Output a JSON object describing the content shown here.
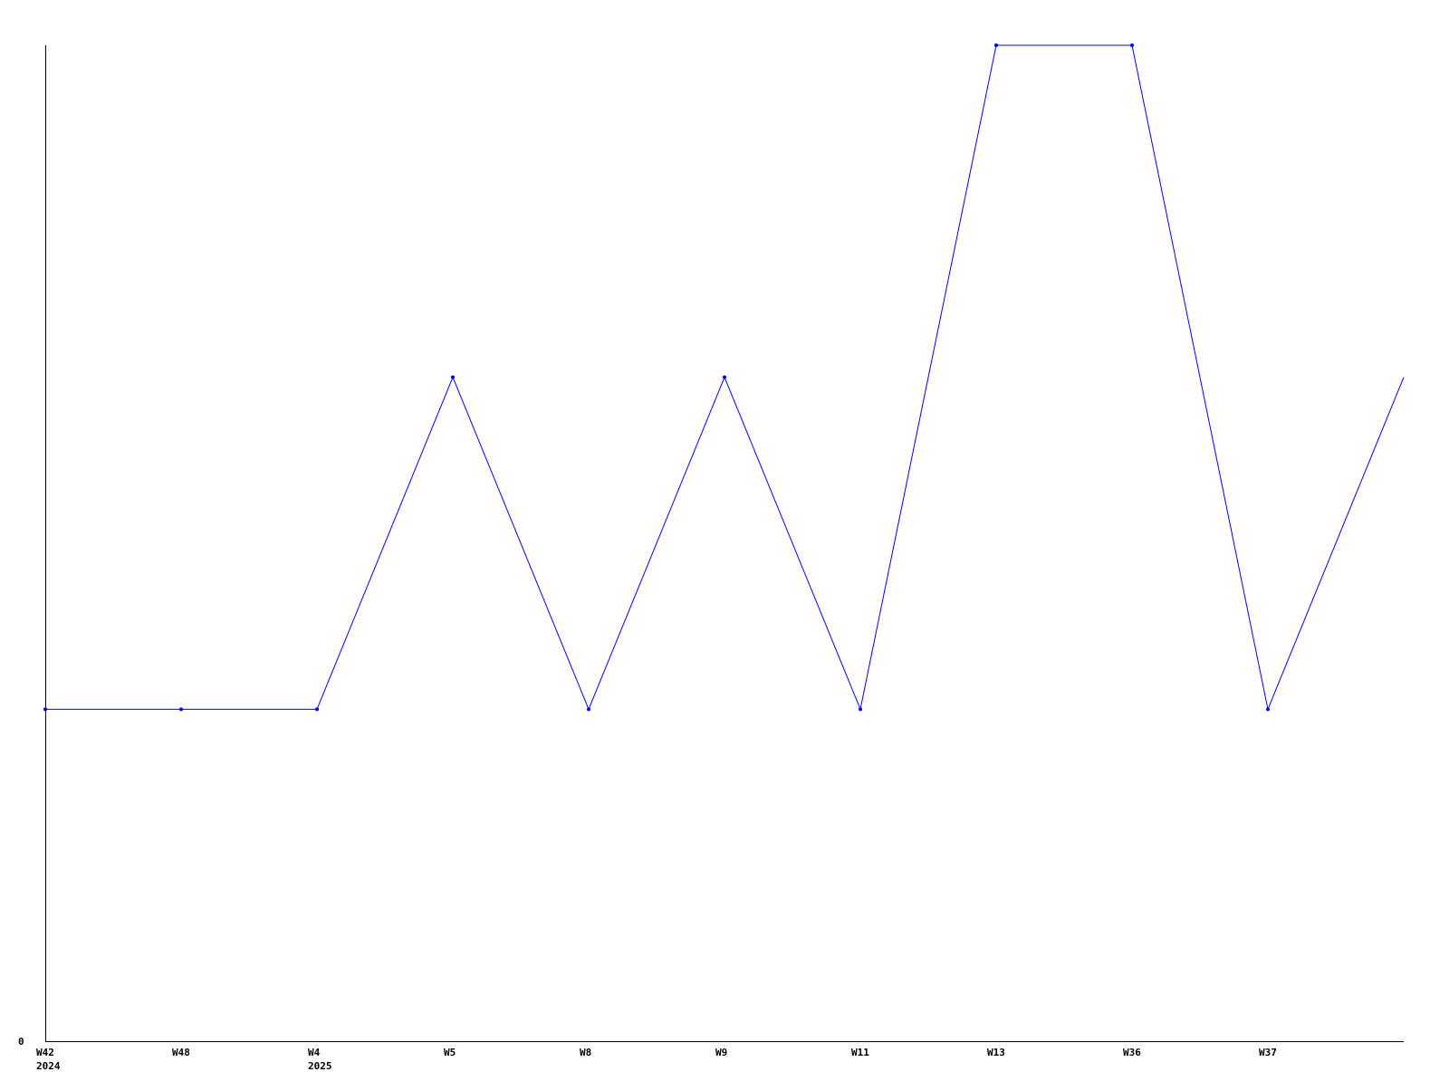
{
  "chart_data": {
    "type": "line",
    "title": "",
    "xlabel": "",
    "ylabel": "",
    "ylim": [
      0,
      3
    ],
    "y_tick_labels": [
      "0"
    ],
    "grid": false,
    "categories": [
      {
        "label": "W42",
        "year": "2024"
      },
      {
        "label": "W48",
        "year": ""
      },
      {
        "label": "W4",
        "year": "2025"
      },
      {
        "label": "W5",
        "year": ""
      },
      {
        "label": "W8",
        "year": ""
      },
      {
        "label": "W9",
        "year": ""
      },
      {
        "label": "W11",
        "year": ""
      },
      {
        "label": "W13",
        "year": ""
      },
      {
        "label": "W36",
        "year": ""
      },
      {
        "label": "W37",
        "year": ""
      },
      {
        "label": "",
        "year": ""
      }
    ],
    "series": [
      {
        "values": [
          1,
          1,
          1,
          2,
          1,
          2,
          1,
          3,
          3,
          1,
          2
        ],
        "color": "#0000ff"
      }
    ]
  }
}
